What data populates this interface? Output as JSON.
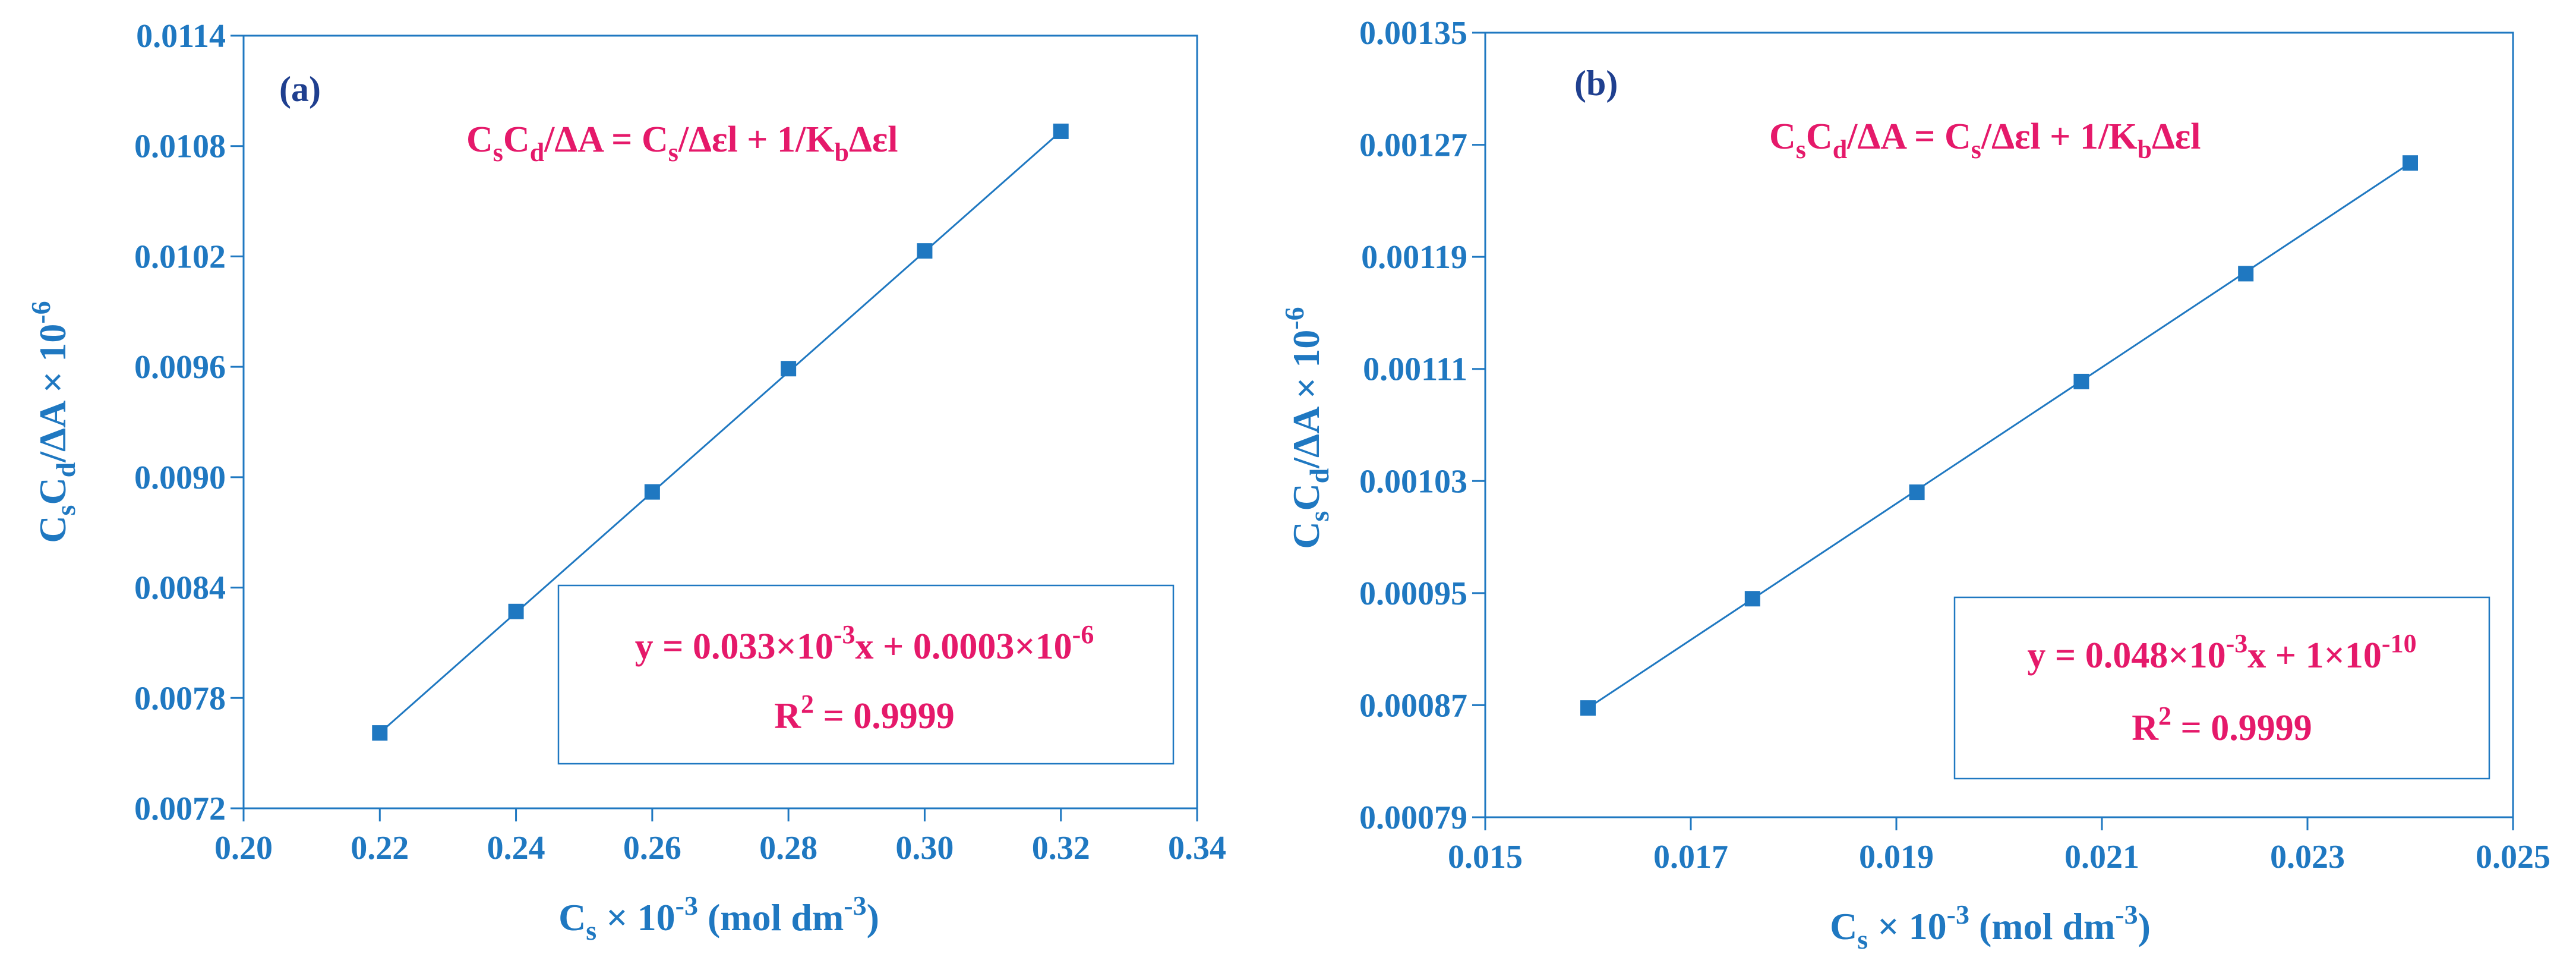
{
  "colors": {
    "axis": "#1F78C1",
    "marker": "#1F78C1",
    "line": "#1F78C1",
    "equation": "#E5196A",
    "panel_label": "#1F3F8F"
  },
  "chart_data": [
    {
      "type": "scatter",
      "panel_label": "(a)",
      "equation": {
        "parts": [
          "C",
          "s",
          "C",
          "d",
          "/ΔA = C",
          "s",
          "/Δεl + 1/K",
          "b",
          "Δεl"
        ]
      },
      "xlabel": {
        "main": "C",
        "sub": "s",
        "mid": " × 10",
        "sup": "-3",
        "unit": " (mol dm",
        "unit_sup": "-3",
        "end": ")"
      },
      "ylabel": {
        "main": "C",
        "sub1": "s",
        "main2": "C",
        "sub2": "d",
        "mid": "/ΔA × 10",
        "sup": "-6"
      },
      "xlim": [
        0.2,
        0.34
      ],
      "ylim": [
        0.0072,
        0.0114
      ],
      "xticks": [
        0.2,
        0.22,
        0.24,
        0.26,
        0.28,
        0.3,
        0.32,
        0.34
      ],
      "xtick_labels": [
        "0.20",
        "0.22",
        "0.24",
        "0.26",
        "0.28",
        "0.30",
        "0.32",
        "0.34"
      ],
      "yticks": [
        0.0072,
        0.0078,
        0.0084,
        0.009,
        0.0096,
        0.0102,
        0.0108,
        0.0114
      ],
      "ytick_labels": [
        "0.0072",
        "0.0078",
        "0.0084",
        "0.0090",
        "0.0096",
        "0.0102",
        "0.0108",
        "0.0114"
      ],
      "series": [
        {
          "x": [
            0.22,
            0.24,
            0.26,
            0.28,
            0.3,
            0.32
          ],
          "y": [
            0.00761,
            0.00827,
            0.00892,
            0.00959,
            0.01023,
            0.01088
          ]
        }
      ],
      "fit_legend": {
        "line1": {
          "pre": "y = 0.033×10",
          "sup1": "-3",
          "mid": "x + 0.0003×10",
          "sup2": "-6"
        },
        "line2": {
          "pre": "R",
          "sup": "2",
          "post": " = 0.9999"
        }
      },
      "grid": false
    },
    {
      "type": "scatter",
      "panel_label": "(b)",
      "equation": {
        "parts": [
          "C",
          "s",
          "C",
          "d",
          "/ΔA = C",
          "s",
          "/Δεl + 1/K",
          "b",
          "Δεl"
        ]
      },
      "xlabel": {
        "main": "C",
        "sub": "s",
        "mid": " × 10",
        "sup": "-3",
        "unit": " (mol dm",
        "unit_sup": "-3",
        "end": ")"
      },
      "ylabel": {
        "main": "C",
        "sub1": "s",
        "main2": "C",
        "sub2": "d",
        "mid": "/ΔA × 10",
        "sup": "-6"
      },
      "xlim": [
        0.015,
        0.025
      ],
      "ylim": [
        0.00079,
        0.00135
      ],
      "xticks": [
        0.015,
        0.017,
        0.019,
        0.021,
        0.023,
        0.025
      ],
      "xtick_labels": [
        "0.015",
        "0.017",
        "0.019",
        "0.021",
        "0.023",
        "0.025"
      ],
      "yticks": [
        0.00079,
        0.00087,
        0.00095,
        0.00103,
        0.00111,
        0.00119,
        0.00127,
        0.00135
      ],
      "ytick_labels": [
        "0.00079",
        "0.00087",
        "0.00095",
        "0.00103",
        "0.00111",
        "0.00119",
        "0.00127",
        "0.00135"
      ],
      "series": [
        {
          "x": [
            0.016,
            0.0176,
            0.0192,
            0.0208,
            0.0224,
            0.024
          ],
          "y": [
            0.000868,
            0.000946,
            0.001022,
            0.001101,
            0.001178,
            0.001257
          ]
        }
      ],
      "fit_legend": {
        "line1": {
          "pre": "y = 0.048×10",
          "sup1": "-3",
          "mid": "x + 1×10",
          "sup2": "-10"
        },
        "line2": {
          "pre": "R",
          "sup": "2",
          "post": " = 0.9999"
        }
      },
      "grid": false
    }
  ]
}
